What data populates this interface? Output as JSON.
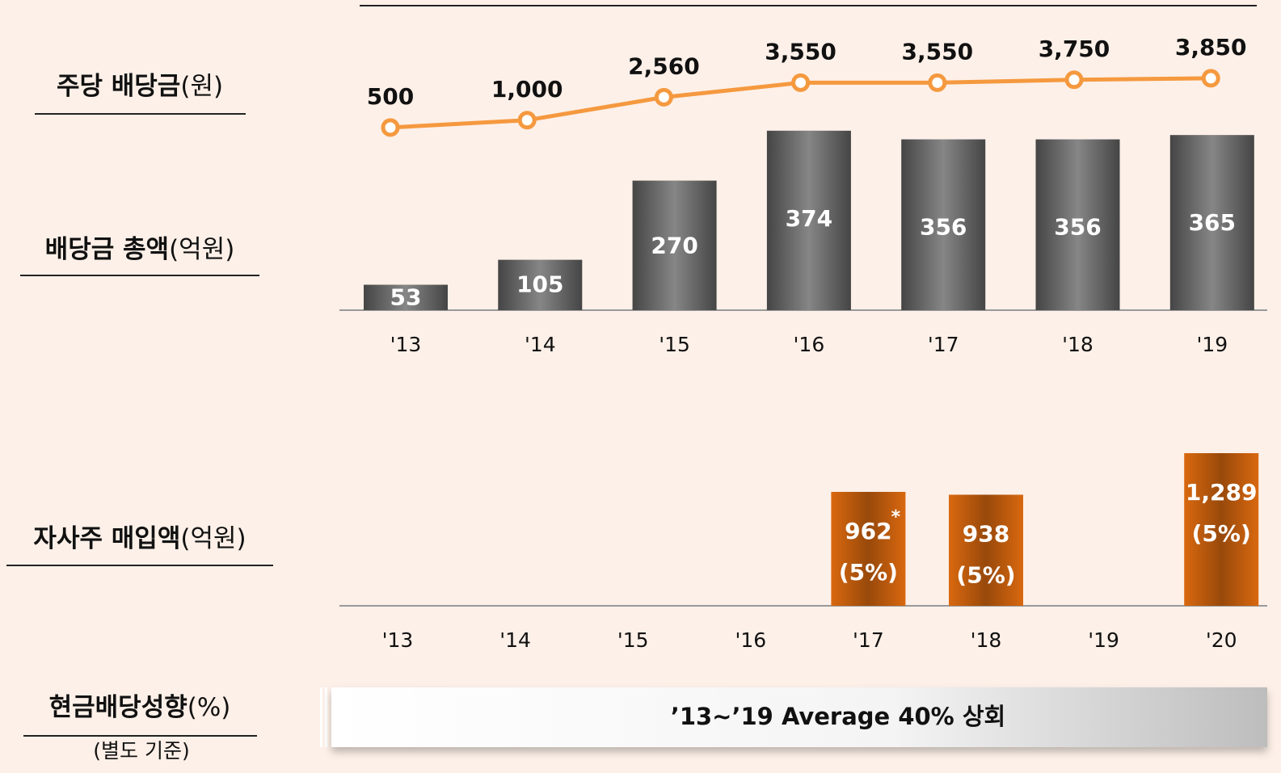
{
  "row_labels": [
    {
      "label": "주당 배당금",
      "unit": "(원)"
    },
    {
      "label": "배당금 총액",
      "unit": "(억원)"
    },
    {
      "label": "자사주 매입액",
      "unit": "(억원)"
    },
    {
      "label": "현금배당성향",
      "unit": "(%)",
      "note": "(별도 기준)"
    }
  ],
  "banner": "’13~’19 Average 40% 상회",
  "chart_data": [
    {
      "type": "line",
      "values": [
        500,
        1000,
        2560,
        3550,
        3550,
        3750,
        3850
      ],
      "value_labels": [
        "500",
        "1,000",
        "2,560",
        "3,550",
        "3,550",
        "3,750",
        "3,850"
      ],
      "color": "#f5993f"
    },
    {
      "type": "bar",
      "categories": [
        "'13",
        "'14",
        "'15",
        "'16",
        "'17",
        "'18",
        "'19"
      ],
      "values": [
        53,
        105,
        270,
        374,
        356,
        356,
        365
      ],
      "color": "#454545"
    },
    {
      "type": "bar",
      "categories": [
        "'13",
        "'14",
        "'15",
        "'16",
        "'17",
        "'18",
        "'19",
        "'20"
      ],
      "values": [
        null,
        null,
        null,
        null,
        962,
        938,
        null,
        1289
      ],
      "value_labels": [
        null,
        null,
        null,
        null,
        "962",
        "938",
        null,
        "1,289"
      ],
      "percent_labels": [
        null,
        null,
        null,
        null,
        "(5%)",
        "(5%)",
        null,
        "(5%)"
      ],
      "markers": [
        null,
        null,
        null,
        null,
        "*",
        null,
        null,
        null
      ],
      "color": "#d9680f"
    }
  ]
}
